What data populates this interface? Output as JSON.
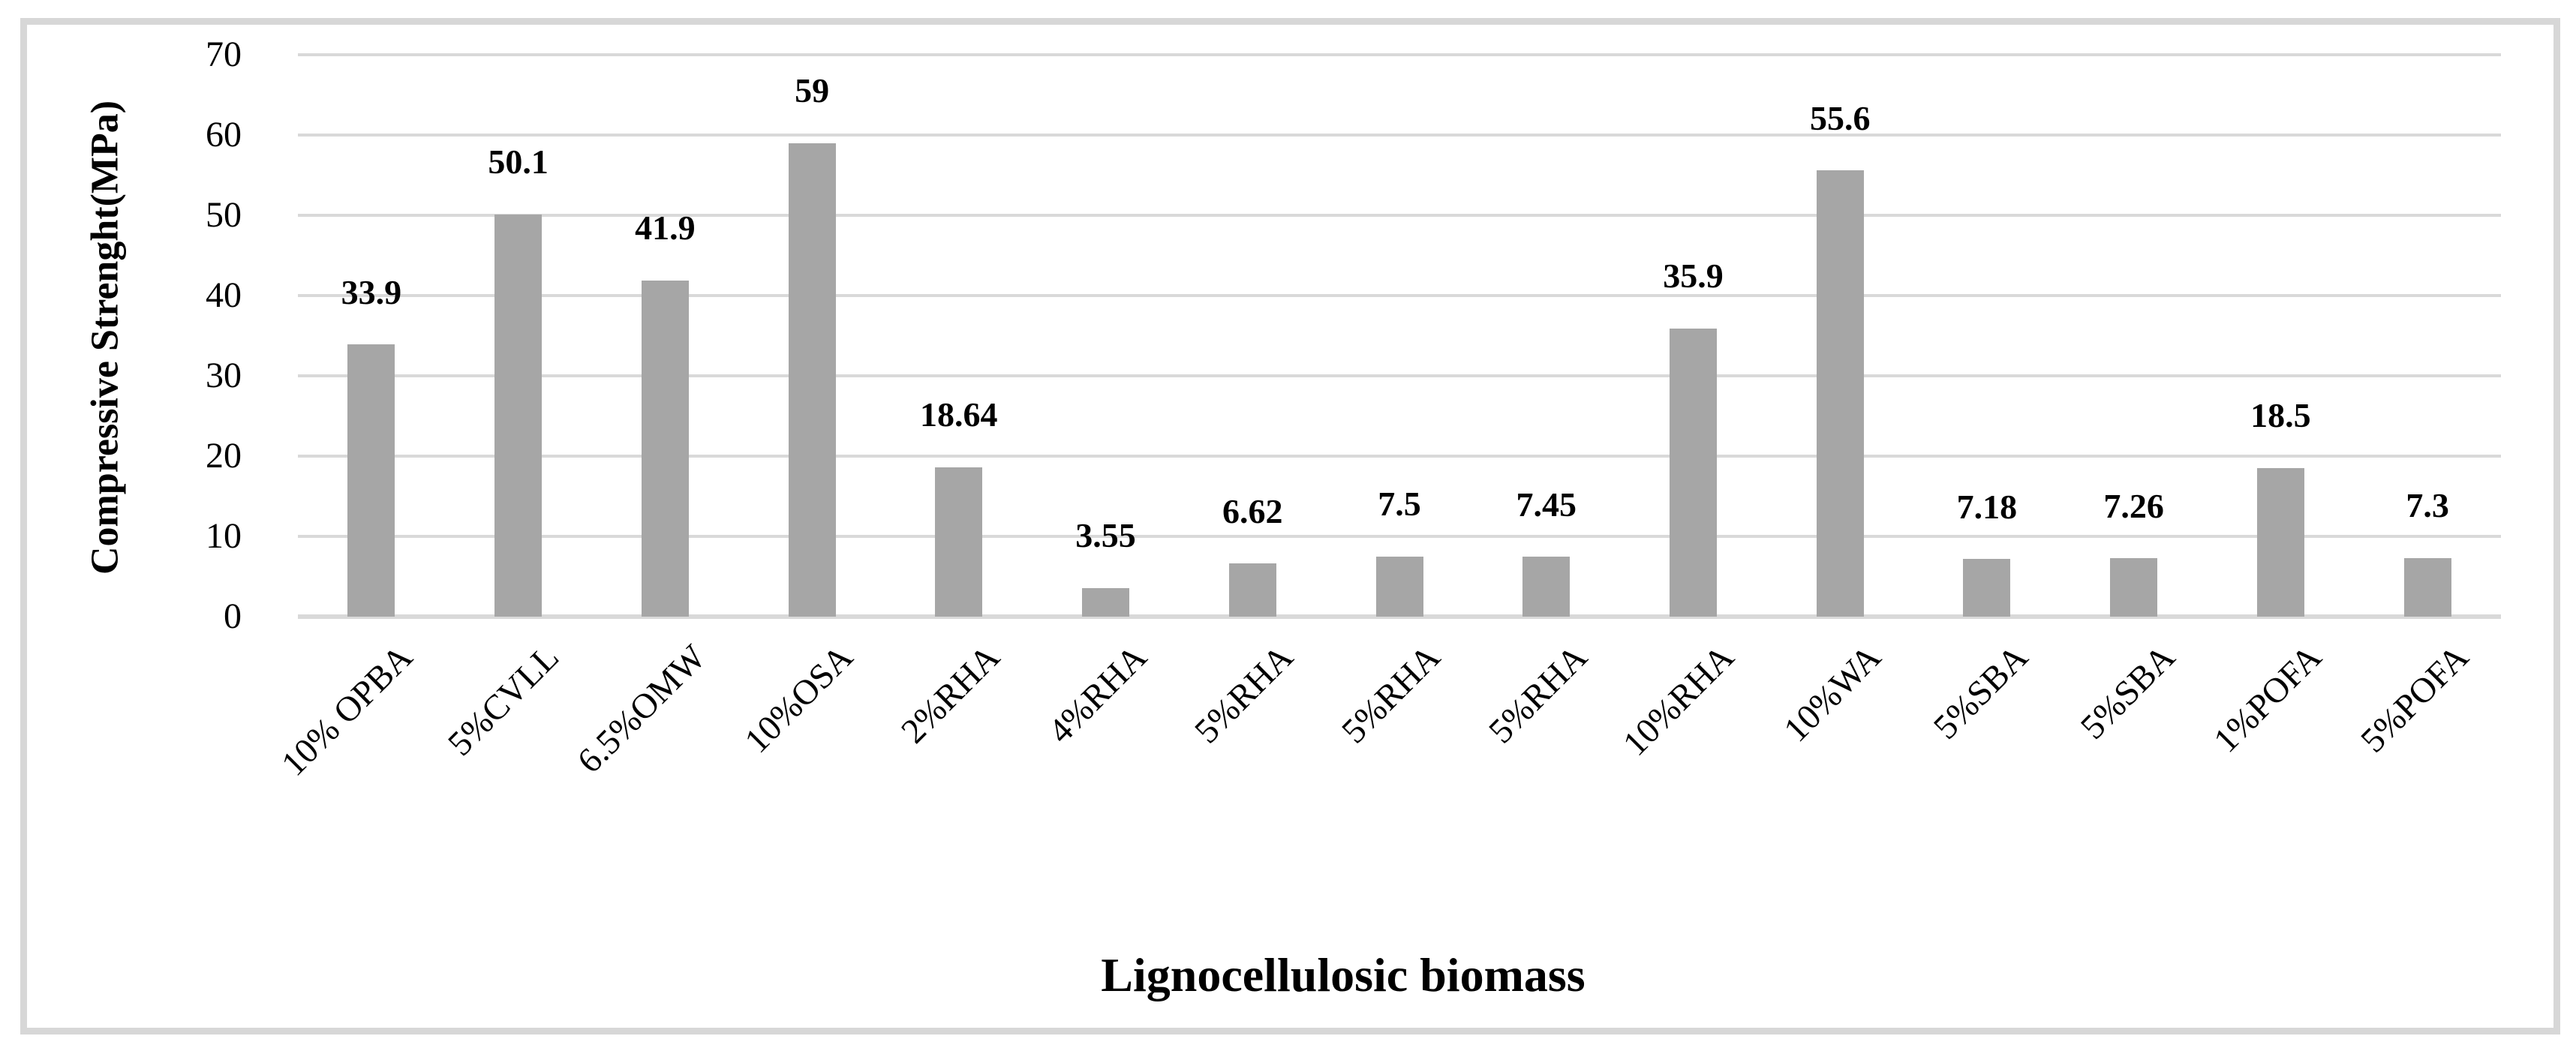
{
  "chart_data": {
    "type": "bar",
    "categories": [
      "10% OPBA",
      "5%CVLL",
      "6.5%OMW",
      "10%OSA",
      "2%RHA",
      "4%RHA",
      "5%RHA",
      "5%RHA",
      "5%RHA",
      "10%RHA",
      "10%WA",
      "5%SBA",
      "5%SBA",
      "1%POFA",
      "5%POFA"
    ],
    "values": [
      33.9,
      50.1,
      41.9,
      59,
      18.64,
      3.55,
      6.62,
      7.5,
      7.45,
      35.9,
      55.6,
      7.18,
      7.26,
      18.5,
      7.3
    ],
    "title": "",
    "xlabel": "Lignocellulosic biomass",
    "ylabel": "Compressive Strenght(MPa)",
    "ylim": [
      0,
      70
    ],
    "yticks": [
      0,
      10,
      20,
      30,
      40,
      50,
      60,
      70
    ],
    "grid": "horizontal",
    "legend": "none",
    "bar_color": "#a6a6a6",
    "gridline_color": "#d9d9d9",
    "frame_border_color": "#d7d7d7",
    "text_color": "#000000"
  }
}
